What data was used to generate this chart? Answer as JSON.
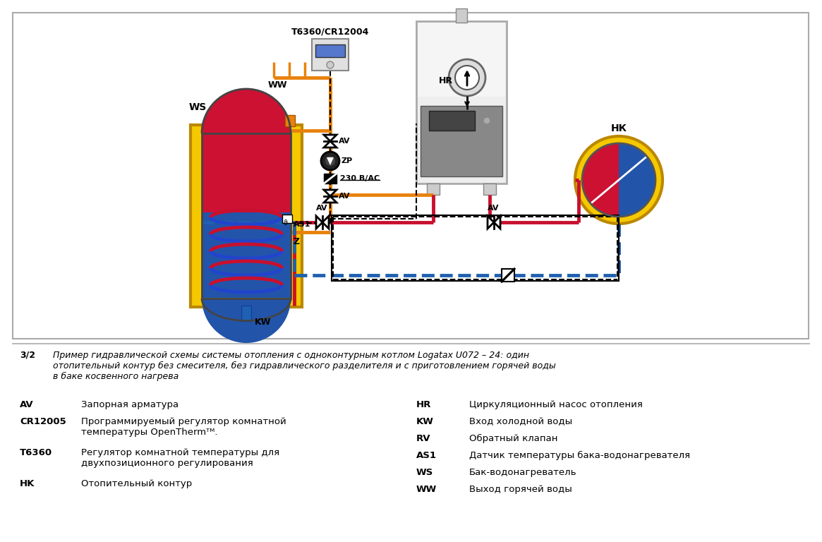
{
  "bg_color": "#ffffff",
  "orange_color": "#E8820C",
  "red_color": "#C8102E",
  "blue_color": "#2060B0",
  "black_color": "#000000",
  "yellow_color": "#F5C800",
  "gray_light": "#E8E8E8",
  "gray_med": "#A0A0A0",
  "boiler_gray": "#D8D8D8",
  "tank_red_top": "#CC1133",
  "tank_blue_bot": "#2255AA",
  "legend_left": [
    [
      "AV",
      "Запорная арматура"
    ],
    [
      "CR12005",
      "Программируемый регулятор комнатной\nтемпературы OpenThermᵀᴹ."
    ],
    [
      "T6360",
      "Регулятор комнатной температуры для\nдвухпозиционного регулирования"
    ],
    [
      "НK",
      "Отопительный контур"
    ]
  ],
  "legend_right": [
    [
      "HR",
      "Циркуляционный насос отопления"
    ],
    [
      "KW",
      "Вход холодной воды"
    ],
    [
      "RV",
      "Обратный клапан"
    ],
    [
      "AS1",
      "Датчик температуры бака-водонагревателя"
    ],
    [
      "WS",
      "Бак-водонагреватель"
    ],
    [
      "WW",
      "Выход горячей воды"
    ]
  ]
}
